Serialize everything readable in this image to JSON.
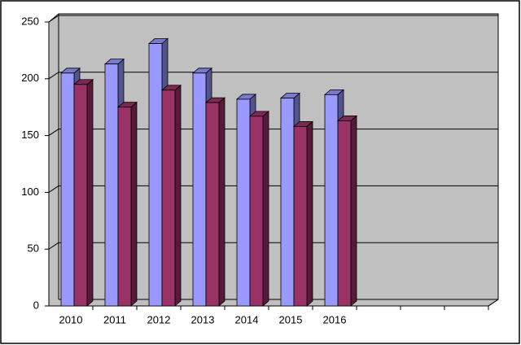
{
  "chart_data": {
    "type": "bar3d",
    "categories": [
      "2010",
      "2011",
      "2012",
      "2013",
      "2014",
      "2015",
      "2016",
      null,
      null,
      null
    ],
    "series": [
      {
        "color": "#9999ff",
        "values": [
          205,
          213,
          231,
          205,
          182,
          183,
          186,
          null,
          null,
          null
        ]
      },
      {
        "color": "#993366",
        "values": [
          195,
          175,
          190,
          179,
          167,
          158,
          163,
          null,
          null,
          null
        ]
      }
    ],
    "ylim": [
      0,
      250
    ],
    "yticks": [
      0,
      50,
      100,
      150,
      200,
      250
    ],
    "grid": true
  }
}
